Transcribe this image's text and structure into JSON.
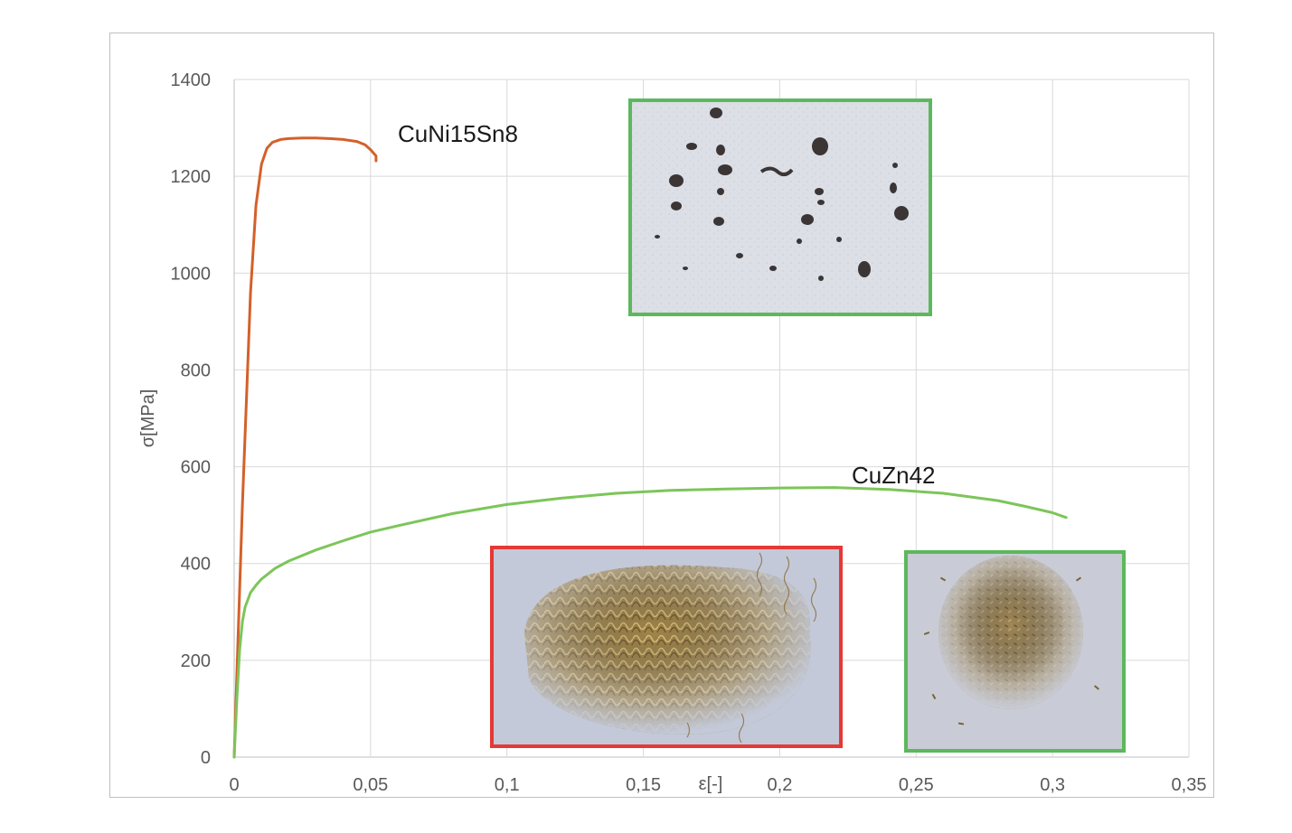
{
  "chart_data": {
    "type": "line",
    "xlabel": "ε[-]",
    "ylabel": "σ[MPa]",
    "xlim": [
      0,
      0.35
    ],
    "ylim": [
      0,
      1400
    ],
    "x_ticks": [
      "0",
      "0,05",
      "0,1",
      "0,15",
      "0,2",
      "0,25",
      "0,3",
      "0,35"
    ],
    "y_ticks": [
      "0",
      "200",
      "400",
      "600",
      "800",
      "1000",
      "1200",
      "1400"
    ],
    "grid": true,
    "legend": "none",
    "series": [
      {
        "name": "CuNi15Sn8",
        "color": "#d4602a",
        "x": [
          0,
          0.003,
          0.006,
          0.008,
          0.01,
          0.012,
          0.014,
          0.017,
          0.02,
          0.025,
          0.03,
          0.035,
          0.04,
          0.045,
          0.048,
          0.05,
          0.052,
          0.052
        ],
        "y": [
          0,
          520,
          960,
          1140,
          1225,
          1258,
          1270,
          1276,
          1278,
          1279,
          1279,
          1278,
          1276,
          1272,
          1265,
          1255,
          1242,
          1232
        ]
      },
      {
        "name": "CuZn42",
        "color": "#7dc55a",
        "x": [
          0,
          0.001,
          0.002,
          0.003,
          0.004,
          0.006,
          0.008,
          0.01,
          0.015,
          0.02,
          0.03,
          0.04,
          0.05,
          0.06,
          0.08,
          0.1,
          0.12,
          0.14,
          0.16,
          0.18,
          0.2,
          0.22,
          0.24,
          0.26,
          0.28,
          0.29,
          0.3,
          0.305
        ],
        "y": [
          0,
          120,
          220,
          280,
          310,
          340,
          355,
          368,
          390,
          405,
          428,
          447,
          465,
          478,
          503,
          522,
          535,
          545,
          551,
          554,
          556,
          557,
          553,
          545,
          530,
          518,
          505,
          495
        ]
      }
    ]
  },
  "insets": [
    {
      "id": "inset-cuni-chips",
      "border_color": "#5cb85c"
    },
    {
      "id": "inset-cuzn-long-chips",
      "border_color": "#e53935"
    },
    {
      "id": "inset-cuzn-short-chips",
      "border_color": "#5cb85c"
    }
  ]
}
